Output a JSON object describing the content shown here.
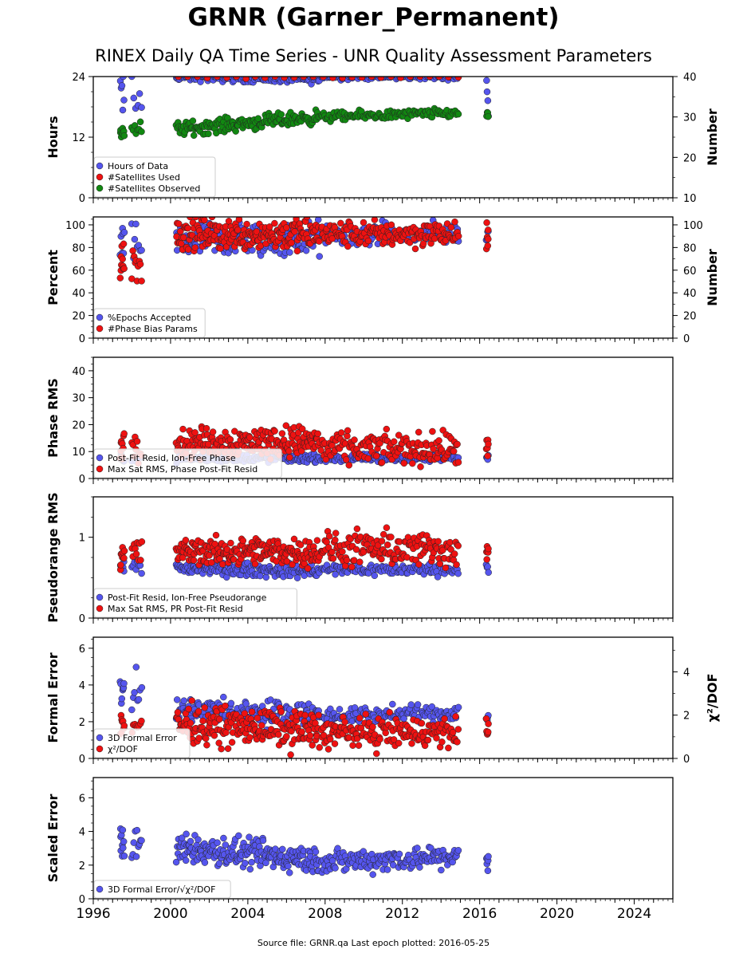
{
  "title": "GRNR (Garner_Permanent)",
  "subtitle": "RINEX Daily QA Time Series - UNR Quality Assessment Parameters",
  "footer": "Source file: GRNR.qa Last epoch plotted: 2016-05-25",
  "colors": {
    "blue": "#5555ee",
    "red": "#ee1111",
    "green": "#118811",
    "edge": "#222222"
  },
  "chart_data": [
    {
      "type": "scatter",
      "xlim": [
        1996,
        2026
      ],
      "ylabel": "Hours",
      "ylim": [
        0,
        24
      ],
      "yticks": [
        0,
        12,
        24
      ],
      "y2label": "Number",
      "y2lim": [
        10,
        40
      ],
      "y2ticks": [
        10,
        20,
        30,
        40
      ],
      "legend": "lower-left",
      "series": [
        {
          "name": "Hours of Data",
          "color": "blue",
          "axis": "left",
          "segments": [
            [
              1997.4,
              1997.6,
              21,
              19,
              3.5,
              6
            ],
            [
              1998.0,
              1998.5,
              21,
              17,
              4,
              6
            ],
            [
              2000.3,
              2007.7,
              24,
              23.5,
              0.6,
              165
            ],
            [
              2007.8,
              2014.9,
              24,
              24,
              0.4,
              120
            ],
            [
              2016.35,
              2016.45,
              24,
              16.5,
              1,
              4
            ]
          ]
        },
        {
          "name": "#Satellites Used",
          "color": "red",
          "axis": "right",
          "segments": [
            [
              2000.4,
              2014.9,
              40,
              40,
              0.3,
              30
            ]
          ]
        },
        {
          "name": "#Satellites Observed",
          "color": "green",
          "axis": "right",
          "segments": [
            [
              1997.4,
              1997.6,
              26.5,
              26.5,
              1.5,
              8
            ],
            [
              1998.0,
              1998.5,
              27,
              27,
              1.5,
              8
            ],
            [
              2000.3,
              2007.7,
              27,
              30,
              1.2,
              165
            ],
            [
              2007.8,
              2014.9,
              30,
              31,
              0.8,
              120
            ],
            [
              2016.35,
              2016.45,
              30.5,
              30.5,
              0.7,
              4
            ]
          ]
        }
      ]
    },
    {
      "type": "scatter",
      "xlim": [
        1996,
        2026
      ],
      "ylabel": "Percent",
      "ylim": [
        0,
        107
      ],
      "yticks": [
        0,
        20,
        40,
        60,
        80,
        100
      ],
      "y2label": "Number",
      "y2lim": [
        0,
        107
      ],
      "y2ticks": [
        0,
        20,
        40,
        60,
        80,
        100
      ],
      "legend": "lower-left",
      "series": [
        {
          "name": "%Epochs Accepted",
          "color": "blue",
          "axis": "left",
          "segments": [
            [
              1997.4,
              1997.6,
              80,
              80,
              12,
              8
            ],
            [
              1998.0,
              1998.5,
              82,
              82,
              12,
              8
            ],
            [
              2000.3,
              2007.7,
              85,
              88,
              11,
              165
            ],
            [
              2007.8,
              2014.9,
              90,
              92,
              7,
              120
            ],
            [
              2016.35,
              2016.45,
              90,
              90,
              4,
              4
            ]
          ]
        },
        {
          "name": "#Phase Bias Params",
          "color": "red",
          "axis": "right",
          "segments": [
            [
              1997.4,
              1997.6,
              68,
              68,
              14,
              10
            ],
            [
              1998.0,
              1998.5,
              70,
              70,
              18,
              10
            ],
            [
              2000.3,
              2007.7,
              92,
              92,
              10,
              200
            ],
            [
              2007.8,
              2014.9,
              92,
              92,
              8,
              150
            ],
            [
              2016.35,
              2016.45,
              85,
              85,
              10,
              6
            ]
          ]
        }
      ]
    },
    {
      "type": "scatter",
      "xlim": [
        1996,
        2026
      ],
      "ylabel": "Phase RMS",
      "ylim": [
        0,
        45
      ],
      "yticks": [
        0,
        10,
        20,
        30,
        40
      ],
      "legend": "lower-left",
      "series": [
        {
          "name": "Post-Fit Resid, Ion-Free Phase",
          "color": "blue",
          "axis": "left",
          "segments": [
            [
              1997.4,
              1997.6,
              7.5,
              7.5,
              1,
              8
            ],
            [
              1998.0,
              1998.5,
              7.5,
              7.5,
              1,
              8
            ],
            [
              2000.3,
              2007.7,
              7.5,
              7.5,
              1,
              165
            ],
            [
              2007.8,
              2014.9,
              7.5,
              7.5,
              1,
              120
            ],
            [
              2016.35,
              2016.45,
              7.5,
              7.5,
              0.7,
              4
            ]
          ]
        },
        {
          "name": "Max Sat RMS, Phase Post-Fit Resid",
          "color": "red",
          "axis": "left",
          "segments": [
            [
              1997.4,
              1997.6,
              12,
              12,
              4,
              10
            ],
            [
              1998.0,
              1998.5,
              13,
              13,
              4,
              10
            ],
            [
              2000.3,
              2007.7,
              13,
              14,
              4,
              200
            ],
            [
              2007.8,
              2014.9,
              11,
              11,
              4,
              150
            ],
            [
              2016.35,
              2016.45,
              11,
              11,
              3,
              6
            ]
          ]
        }
      ]
    },
    {
      "type": "scatter",
      "xlim": [
        1996,
        2026
      ],
      "ylabel": "Pseudorange RMS",
      "ylim": [
        0,
        1.5
      ],
      "yticks": [
        0,
        1
      ],
      "legend": "lower-left",
      "series": [
        {
          "name": "Post-Fit Resid, Ion-Free Pseudorange",
          "color": "blue",
          "axis": "left",
          "segments": [
            [
              1997.4,
              1997.6,
              0.6,
              0.6,
              0.08,
              8
            ],
            [
              1998.0,
              1998.5,
              0.62,
              0.62,
              0.08,
              8
            ],
            [
              2000.3,
              2007.7,
              0.62,
              0.58,
              0.06,
              165
            ],
            [
              2007.8,
              2014.9,
              0.6,
              0.6,
              0.05,
              120
            ],
            [
              2016.35,
              2016.45,
              0.63,
              0.63,
              0.04,
              4
            ]
          ]
        },
        {
          "name": "Max Sat RMS, PR Post-Fit Resid",
          "color": "red",
          "axis": "left",
          "segments": [
            [
              1997.4,
              1997.6,
              0.8,
              0.8,
              0.15,
              10
            ],
            [
              1998.0,
              1998.5,
              0.8,
              0.8,
              0.15,
              10
            ],
            [
              2000.3,
              2007.7,
              0.82,
              0.82,
              0.12,
              200
            ],
            [
              2007.8,
              2014.9,
              0.85,
              0.85,
              0.15,
              150
            ],
            [
              2016.35,
              2016.45,
              0.78,
              0.78,
              0.1,
              6
            ]
          ]
        }
      ]
    },
    {
      "type": "scatter",
      "xlim": [
        1996,
        2026
      ],
      "ylabel": "Formal Error",
      "ylim": [
        0,
        6.6
      ],
      "yticks": [
        0,
        2,
        4,
        6
      ],
      "y2label": "χ²/DOF",
      "y2lim": [
        0,
        5.6
      ],
      "y2ticks": [
        0,
        2,
        4
      ],
      "legend": "lower-left",
      "series": [
        {
          "name": "3D Formal Error",
          "color": "blue",
          "axis": "left",
          "segments": [
            [
              1997.4,
              1997.6,
              3.7,
              3.7,
              0.6,
              8
            ],
            [
              1998.0,
              1998.5,
              3.5,
              3.5,
              0.8,
              8
            ],
            [
              2000.3,
              2007.7,
              2.6,
              2.4,
              0.5,
              165
            ],
            [
              2007.8,
              2014.9,
              2.3,
              2.5,
              0.3,
              120
            ],
            [
              2016.35,
              2016.45,
              2.2,
              2.2,
              0.3,
              4
            ]
          ]
        },
        {
          "name": "χ²/DOF",
          "color": "red",
          "axis": "right",
          "segments": [
            [
              1997.4,
              1997.6,
              1.7,
              1.7,
              0.6,
              8
            ],
            [
              1998.0,
              1998.5,
              1.5,
              1.5,
              0.4,
              8
            ],
            [
              2000.3,
              2007.7,
              1.6,
              1.3,
              0.6,
              200
            ],
            [
              2007.8,
              2014.9,
              1.2,
              1.2,
              0.5,
              150
            ],
            [
              2016.35,
              2016.45,
              1.3,
              1.3,
              0.4,
              6
            ]
          ]
        }
      ]
    },
    {
      "type": "scatter",
      "xlim": [
        1996,
        2026
      ],
      "xticks": [
        1996,
        2000,
        2004,
        2008,
        2012,
        2016,
        2020,
        2024
      ],
      "ylabel": "Scaled Error",
      "ylim": [
        0,
        7.2
      ],
      "yticks": [
        0,
        2,
        4,
        6
      ],
      "legend": "lower-left",
      "series": [
        {
          "name": "3D Formal Error/√χ²/DOF",
          "color": "blue",
          "axis": "left",
          "segments": [
            [
              1997.4,
              1997.6,
              3.3,
              3.3,
              0.9,
              10
            ],
            [
              1998.0,
              1998.5,
              3.0,
              3.0,
              0.8,
              10
            ],
            [
              2000.3,
              2007.7,
              3.0,
              2.3,
              0.6,
              200
            ],
            [
              2007.8,
              2014.9,
              2.2,
              2.5,
              0.5,
              150
            ],
            [
              2016.35,
              2016.45,
              2.1,
              2.1,
              0.4,
              6
            ]
          ]
        }
      ]
    }
  ]
}
